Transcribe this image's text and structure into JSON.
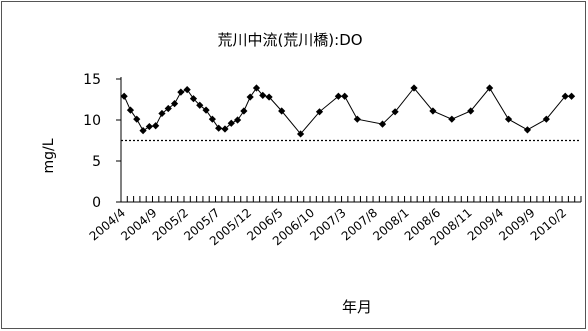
{
  "chart_data": {
    "type": "line",
    "title": "荒川中流(荒川橋):DO",
    "xlabel": "年月",
    "ylabel": "mg/L",
    "ylim": [
      0,
      15
    ],
    "yticks": [
      "0",
      "5",
      "10",
      "15"
    ],
    "grid": false,
    "legend": "none",
    "reference_line": {
      "value": 7.5,
      "style": "dotted"
    },
    "x_tick_labels": [
      {
        "index": 0,
        "label": "2004/4"
      },
      {
        "index": 5,
        "label": "2004/9"
      },
      {
        "index": 10,
        "label": "2005/2"
      },
      {
        "index": 15,
        "label": "2005/7"
      },
      {
        "index": 20,
        "label": "2005/12"
      },
      {
        "index": 25,
        "label": "2006/5"
      },
      {
        "index": 30,
        "label": "2006/10"
      },
      {
        "index": 35,
        "label": "2007/3"
      },
      {
        "index": 40,
        "label": "2007/8"
      },
      {
        "index": 45,
        "label": "2008/1"
      },
      {
        "index": 50,
        "label": "2008/6"
      },
      {
        "index": 55,
        "label": "2008/11"
      },
      {
        "index": 60,
        "label": "2009/4"
      },
      {
        "index": 65,
        "label": "2009/9"
      },
      {
        "index": 70,
        "label": "2010/2"
      }
    ],
    "months_count": 73,
    "series": [
      {
        "color": "#000000",
        "marker": "diamond",
        "points": [
          {
            "index": 0,
            "value": 12.9
          },
          {
            "index": 1,
            "value": 11.2
          },
          {
            "index": 2,
            "value": 10.1
          },
          {
            "index": 3,
            "value": 8.7
          },
          {
            "index": 4,
            "value": 9.2
          },
          {
            "index": 5,
            "value": 9.3
          },
          {
            "index": 6,
            "value": 10.8
          },
          {
            "index": 7,
            "value": 11.4
          },
          {
            "index": 8,
            "value": 12.0
          },
          {
            "index": 9,
            "value": 13.4
          },
          {
            "index": 10,
            "value": 13.7
          },
          {
            "index": 11,
            "value": 12.6
          },
          {
            "index": 12,
            "value": 11.8
          },
          {
            "index": 13,
            "value": 11.2
          },
          {
            "index": 14,
            "value": 10.1
          },
          {
            "index": 15,
            "value": 9.0
          },
          {
            "index": 16,
            "value": 8.9
          },
          {
            "index": 17,
            "value": 9.6
          },
          {
            "index": 18,
            "value": 10.0
          },
          {
            "index": 19,
            "value": 11.1
          },
          {
            "index": 20,
            "value": 12.8
          },
          {
            "index": 21,
            "value": 13.9
          },
          {
            "index": 22,
            "value": 13.0
          },
          {
            "index": 23,
            "value": 12.8
          },
          {
            "index": 25,
            "value": 11.1
          },
          {
            "index": 28,
            "value": 8.3
          },
          {
            "index": 31,
            "value": 11.0
          },
          {
            "index": 34,
            "value": 12.9
          },
          {
            "index": 35,
            "value": 12.9
          },
          {
            "index": 37,
            "value": 10.1
          },
          {
            "index": 41,
            "value": 9.5
          },
          {
            "index": 43,
            "value": 11.0
          },
          {
            "index": 46,
            "value": 13.9
          },
          {
            "index": 49,
            "value": 11.1
          },
          {
            "index": 52,
            "value": 10.1
          },
          {
            "index": 55,
            "value": 11.1
          },
          {
            "index": 58,
            "value": 13.9
          },
          {
            "index": 61,
            "value": 10.1
          },
          {
            "index": 64,
            "value": 8.8
          },
          {
            "index": 67,
            "value": 10.1
          },
          {
            "index": 70,
            "value": 12.9
          },
          {
            "index": 71,
            "value": 12.9
          }
        ]
      }
    ]
  }
}
